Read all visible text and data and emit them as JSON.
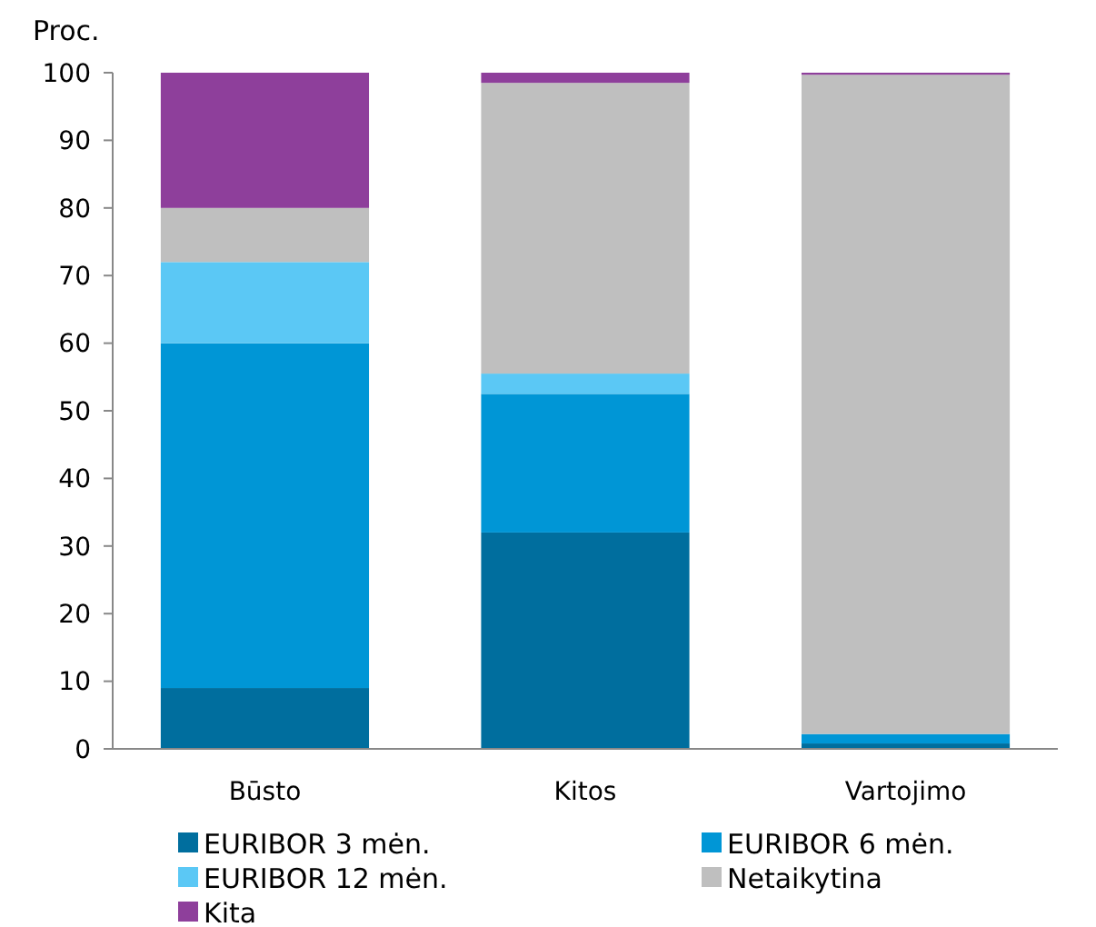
{
  "chart_data": {
    "type": "bar",
    "stacked": true,
    "ylabel": "Proc.",
    "categories": [
      "Būsto",
      "Kitos",
      "Vartojimo"
    ],
    "series": [
      {
        "name": "EURIBOR 3 mėn.",
        "color": "#006e9e",
        "values": [
          9,
          32,
          0.8
        ]
      },
      {
        "name": "EURIBOR 6 mėn.",
        "color": "#0096d6",
        "values": [
          51,
          20.5,
          1.4
        ]
      },
      {
        "name": "EURIBOR 12 mėn.",
        "color": "#5bc8f5",
        "values": [
          12,
          3,
          0
        ]
      },
      {
        "name": "Netaikytina",
        "color": "#bfbfbf",
        "values": [
          8,
          43,
          97.5
        ]
      },
      {
        "name": "Kita",
        "color": "#8e3f9b",
        "values": [
          20,
          1.5,
          0.3
        ]
      }
    ],
    "ylim": [
      0,
      100
    ],
    "yticks": [
      0,
      10,
      20,
      30,
      40,
      50,
      60,
      70,
      80,
      90,
      100
    ],
    "grid": false,
    "legend": "bottom"
  }
}
